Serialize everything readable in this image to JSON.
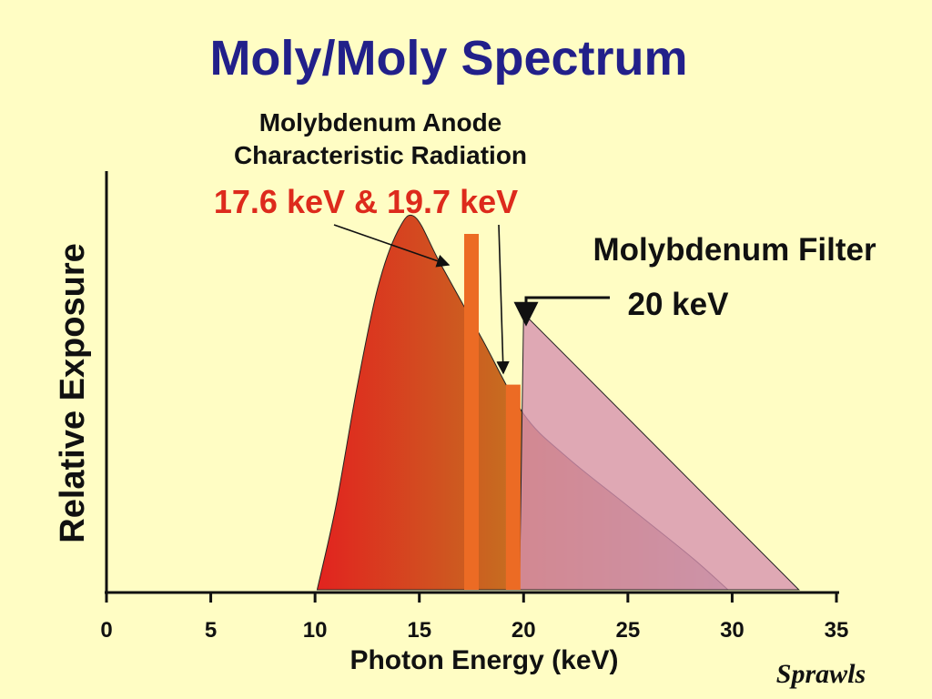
{
  "chart_data": {
    "type": "area",
    "title": "Moly/Moly Spectrum",
    "xlabel": "Photon Energy (keV)",
    "ylabel": "Relative Exposure",
    "xlim": [
      0,
      35
    ],
    "ylim": [
      0,
      1
    ],
    "x_ticks": [
      "0",
      "5",
      "10",
      "15",
      "20",
      "25",
      "30",
      "35"
    ],
    "grid": false,
    "series": [
      {
        "values": [
          [
            10.1,
            0.0
          ],
          [
            11.0,
            0.2
          ],
          [
            12.0,
            0.48
          ],
          [
            13.0,
            0.72
          ],
          [
            14.0,
            0.86
          ],
          [
            14.8,
            0.89
          ],
          [
            16.0,
            0.78
          ],
          [
            18.0,
            0.6
          ],
          [
            20.0,
            0.42
          ],
          [
            22.0,
            0.32
          ],
          [
            25.0,
            0.2
          ],
          [
            28.0,
            0.08
          ],
          [
            29.8,
            0.0
          ]
        ],
        "color_start": "#e2231f",
        "color_end": "#a8a08e"
      },
      {
        "values": [
          [
            19.8,
            0.0
          ],
          [
            20.0,
            0.66
          ],
          [
            33.2,
            0.0
          ]
        ],
        "color": "#d68fb0"
      }
    ],
    "lines": [
      {
        "x": 17.5,
        "y": 0.85,
        "color": "#ec6b24"
      },
      {
        "x": 19.5,
        "y": 0.49,
        "color": "#ec6b24"
      }
    ],
    "annotations": [
      {
        "lines": [
          "Molybdenum Anode",
          "Characteristic Radiation"
        ],
        "color": "#111111"
      },
      {
        "lines": [
          "17.6 keV & 19.7 keV"
        ],
        "color": "#dd2a1c"
      },
      {
        "lines": [
          "Molybdenum Filter"
        ],
        "color": "#111111"
      },
      {
        "lines": [
          "20 keV"
        ],
        "color": "#111111"
      }
    ],
    "signature": "Sprawls",
    "colors": {
      "title": "#22208a",
      "axis": "#111111",
      "background": "#fffdc4"
    }
  }
}
